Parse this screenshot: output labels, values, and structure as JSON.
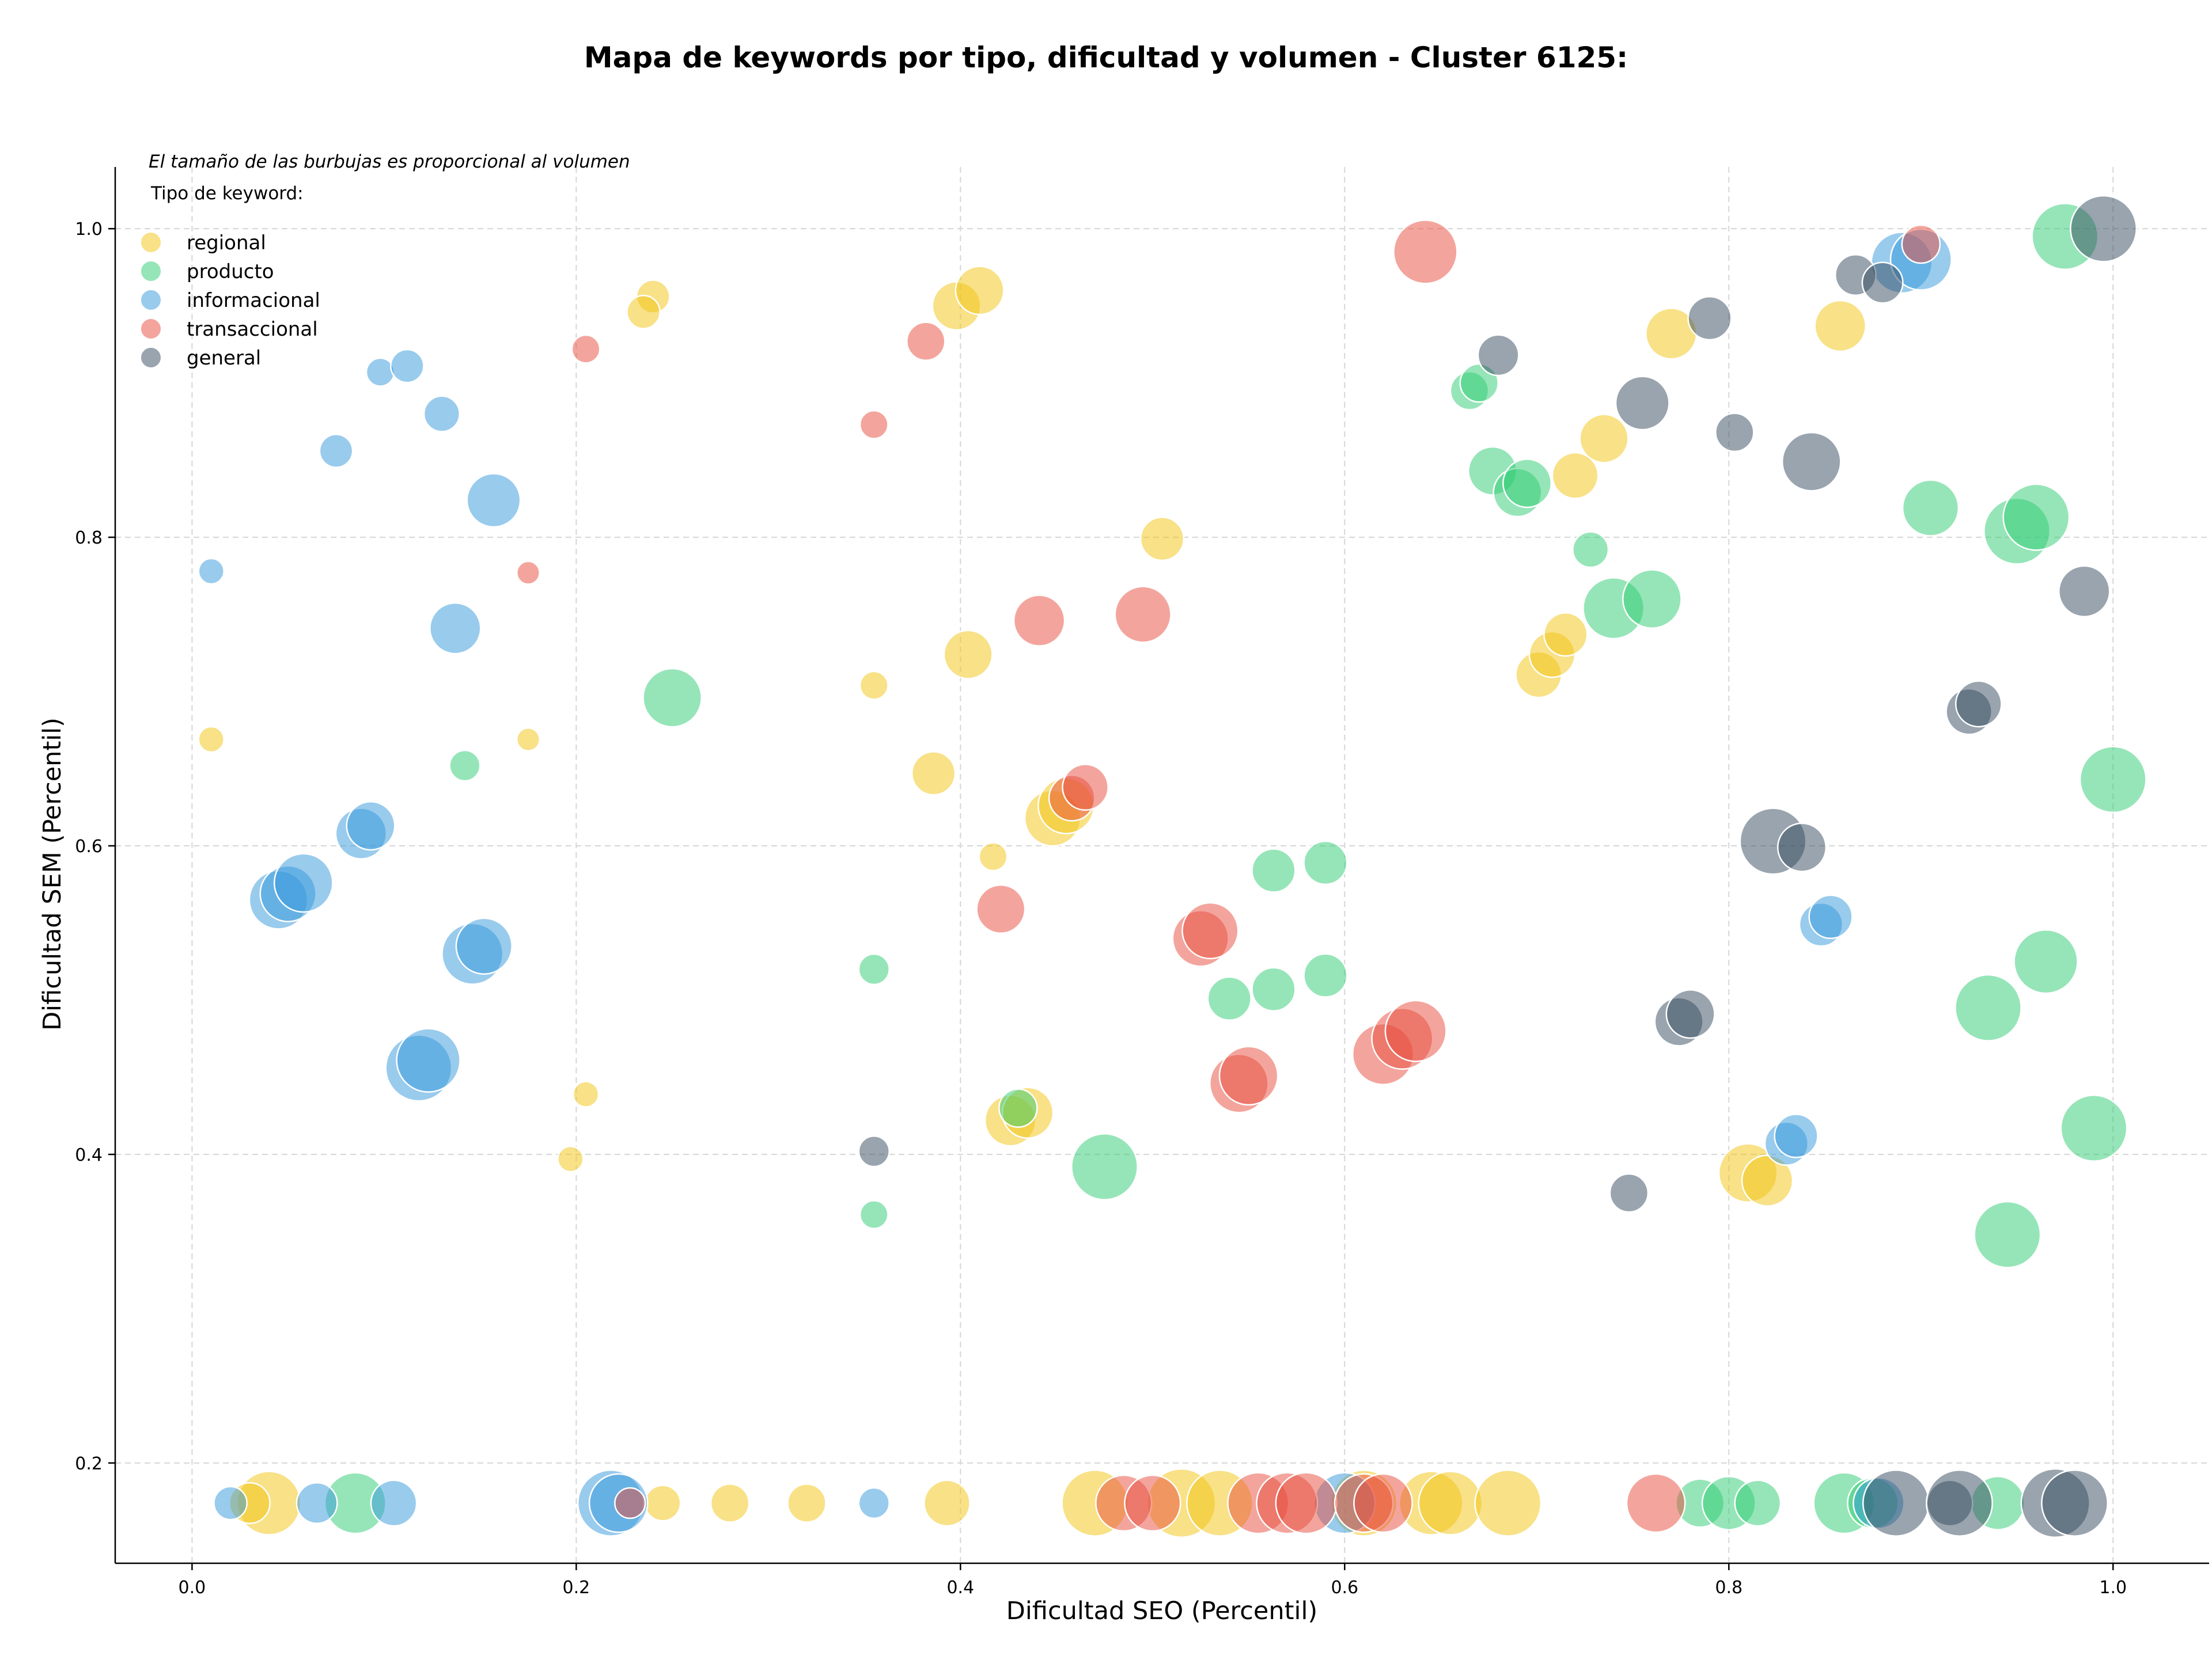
{
  "chart_data": {
    "type": "scatter",
    "title": "Mapa de keywords por tipo, dificultad y volumen - Cluster 6125:",
    "xlabel": "Dificultad SEO (Percentil)",
    "ylabel": "Dificultad SEM (Percentil)",
    "xlim": [
      -0.04,
      1.05
    ],
    "ylim": [
      0.135,
      1.04
    ],
    "x_ticks": [
      0.0,
      0.2,
      0.4,
      0.6,
      0.8,
      1.0
    ],
    "y_ticks": [
      0.2,
      0.4,
      0.6,
      0.8,
      1.0
    ],
    "x_tick_labels": [
      "0.0",
      "0.2",
      "0.4",
      "0.6",
      "0.8",
      "1.0"
    ],
    "y_tick_labels": [
      "0.2",
      "0.4",
      "0.6",
      "0.8",
      "1.0"
    ],
    "grid": true,
    "annotation": "El tamaño de las burbujas es proporcional al volumen",
    "legend_title": "Tipo de keyword:",
    "legend_position": "top-left",
    "series": [
      {
        "name": "regional",
        "color": "#f1c40f",
        "points": [
          {
            "x": 0.01,
            "y": 0.669,
            "s": 1.0
          },
          {
            "x": 0.175,
            "y": 0.669,
            "s": 0.9
          },
          {
            "x": 0.24,
            "y": 0.956,
            "s": 1.3
          },
          {
            "x": 0.235,
            "y": 0.946,
            "s": 1.3
          },
          {
            "x": 0.205,
            "y": 0.439,
            "s": 1.0
          },
          {
            "x": 0.197,
            "y": 0.397,
            "s": 1.0
          },
          {
            "x": 0.04,
            "y": 0.174,
            "s": 2.5
          },
          {
            "x": 0.03,
            "y": 0.174,
            "s": 1.6
          },
          {
            "x": 0.245,
            "y": 0.174,
            "s": 1.4
          },
          {
            "x": 0.28,
            "y": 0.174,
            "s": 1.5
          },
          {
            "x": 0.32,
            "y": 0.174,
            "s": 1.5
          },
          {
            "x": 0.393,
            "y": 0.174,
            "s": 1.8
          },
          {
            "x": 0.355,
            "y": 0.704,
            "s": 1.1
          },
          {
            "x": 0.398,
            "y": 0.95,
            "s": 1.9
          },
          {
            "x": 0.41,
            "y": 0.96,
            "s": 1.9
          },
          {
            "x": 0.404,
            "y": 0.724,
            "s": 1.9
          },
          {
            "x": 0.386,
            "y": 0.647,
            "s": 1.7
          },
          {
            "x": 0.417,
            "y": 0.593,
            "s": 1.1
          },
          {
            "x": 0.505,
            "y": 0.799,
            "s": 1.7
          },
          {
            "x": 0.426,
            "y": 0.422,
            "s": 2.0
          },
          {
            "x": 0.435,
            "y": 0.427,
            "s": 2.0
          },
          {
            "x": 0.448,
            "y": 0.618,
            "s": 2.2
          },
          {
            "x": 0.455,
            "y": 0.626,
            "s": 2.2
          },
          {
            "x": 0.47,
            "y": 0.174,
            "s": 2.6
          },
          {
            "x": 0.515,
            "y": 0.174,
            "s": 2.7
          },
          {
            "x": 0.535,
            "y": 0.174,
            "s": 2.6
          },
          {
            "x": 0.61,
            "y": 0.174,
            "s": 2.6
          },
          {
            "x": 0.645,
            "y": 0.174,
            "s": 2.5
          },
          {
            "x": 0.655,
            "y": 0.174,
            "s": 2.5
          },
          {
            "x": 0.685,
            "y": 0.174,
            "s": 2.6
          },
          {
            "x": 0.701,
            "y": 0.711,
            "s": 1.8
          },
          {
            "x": 0.708,
            "y": 0.724,
            "s": 1.8
          },
          {
            "x": 0.715,
            "y": 0.737,
            "s": 1.7
          },
          {
            "x": 0.72,
            "y": 0.84,
            "s": 1.8
          },
          {
            "x": 0.735,
            "y": 0.864,
            "s": 1.9
          },
          {
            "x": 0.77,
            "y": 0.932,
            "s": 2.0
          },
          {
            "x": 0.858,
            "y": 0.937,
            "s": 2.0
          },
          {
            "x": 0.81,
            "y": 0.388,
            "s": 2.3
          },
          {
            "x": 0.82,
            "y": 0.383,
            "s": 2.0
          }
        ]
      },
      {
        "name": "producto",
        "color": "#2ecc71",
        "points": [
          {
            "x": 0.142,
            "y": 0.652,
            "s": 1.2
          },
          {
            "x": 0.25,
            "y": 0.696,
            "s": 2.3
          },
          {
            "x": 0.085,
            "y": 0.174,
            "s": 2.4
          },
          {
            "x": 0.355,
            "y": 0.52,
            "s": 1.2
          },
          {
            "x": 0.355,
            "y": 0.361,
            "s": 1.1
          },
          {
            "x": 0.43,
            "y": 0.43,
            "s": 1.5
          },
          {
            "x": 0.475,
            "y": 0.392,
            "s": 2.6
          },
          {
            "x": 0.54,
            "y": 0.501,
            "s": 1.7
          },
          {
            "x": 0.563,
            "y": 0.584,
            "s": 1.7
          },
          {
            "x": 0.563,
            "y": 0.507,
            "s": 1.7
          },
          {
            "x": 0.59,
            "y": 0.589,
            "s": 1.7
          },
          {
            "x": 0.59,
            "y": 0.516,
            "s": 1.7
          },
          {
            "x": 0.665,
            "y": 0.895,
            "s": 1.5
          },
          {
            "x": 0.67,
            "y": 0.9,
            "s": 1.5
          },
          {
            "x": 0.677,
            "y": 0.843,
            "s": 1.9
          },
          {
            "x": 0.69,
            "y": 0.829,
            "s": 1.9
          },
          {
            "x": 0.695,
            "y": 0.835,
            "s": 1.9
          },
          {
            "x": 0.728,
            "y": 0.792,
            "s": 1.4
          },
          {
            "x": 0.74,
            "y": 0.754,
            "s": 2.4
          },
          {
            "x": 0.76,
            "y": 0.76,
            "s": 2.3
          },
          {
            "x": 0.785,
            "y": 0.174,
            "s": 1.9
          },
          {
            "x": 0.8,
            "y": 0.174,
            "s": 2.1
          },
          {
            "x": 0.815,
            "y": 0.174,
            "s": 1.8
          },
          {
            "x": 0.86,
            "y": 0.174,
            "s": 2.4
          },
          {
            "x": 0.875,
            "y": 0.174,
            "s": 2.0
          },
          {
            "x": 0.905,
            "y": 0.819,
            "s": 2.2
          },
          {
            "x": 0.94,
            "y": 0.174,
            "s": 2.1
          },
          {
            "x": 0.935,
            "y": 0.495,
            "s": 2.6
          },
          {
            "x": 0.965,
            "y": 0.525,
            "s": 2.5
          },
          {
            "x": 0.95,
            "y": 0.804,
            "s": 2.6
          },
          {
            "x": 0.96,
            "y": 0.813,
            "s": 2.6
          },
          {
            "x": 0.945,
            "y": 0.348,
            "s": 2.6
          },
          {
            "x": 0.975,
            "y": 0.995,
            "s": 2.6
          },
          {
            "x": 0.99,
            "y": 0.417,
            "s": 2.6
          },
          {
            "x": 1.0,
            "y": 0.643,
            "s": 2.6
          }
        ]
      },
      {
        "name": "informacional",
        "color": "#3498db",
        "points": [
          {
            "x": 0.01,
            "y": 0.778,
            "s": 1.0
          },
          {
            "x": 0.098,
            "y": 0.907,
            "s": 1.1
          },
          {
            "x": 0.112,
            "y": 0.911,
            "s": 1.3
          },
          {
            "x": 0.13,
            "y": 0.88,
            "s": 1.4
          },
          {
            "x": 0.075,
            "y": 0.856,
            "s": 1.3
          },
          {
            "x": 0.157,
            "y": 0.824,
            "s": 2.1
          },
          {
            "x": 0.137,
            "y": 0.741,
            "s": 2.0
          },
          {
            "x": 0.088,
            "y": 0.608,
            "s": 2.0
          },
          {
            "x": 0.093,
            "y": 0.613,
            "s": 1.9
          },
          {
            "x": 0.045,
            "y": 0.565,
            "s": 2.3
          },
          {
            "x": 0.05,
            "y": 0.569,
            "s": 2.2
          },
          {
            "x": 0.058,
            "y": 0.576,
            "s": 2.3
          },
          {
            "x": 0.146,
            "y": 0.53,
            "s": 2.4
          },
          {
            "x": 0.152,
            "y": 0.535,
            "s": 2.2
          },
          {
            "x": 0.118,
            "y": 0.456,
            "s": 2.6
          },
          {
            "x": 0.123,
            "y": 0.461,
            "s": 2.5
          },
          {
            "x": 0.02,
            "y": 0.174,
            "s": 1.3
          },
          {
            "x": 0.065,
            "y": 0.174,
            "s": 1.6
          },
          {
            "x": 0.105,
            "y": 0.174,
            "s": 1.8
          },
          {
            "x": 0.218,
            "y": 0.174,
            "s": 2.6
          },
          {
            "x": 0.222,
            "y": 0.174,
            "s": 2.3
          },
          {
            "x": 0.355,
            "y": 0.174,
            "s": 1.2
          },
          {
            "x": 0.6,
            "y": 0.174,
            "s": 2.4
          },
          {
            "x": 0.848,
            "y": 0.549,
            "s": 1.7
          },
          {
            "x": 0.853,
            "y": 0.554,
            "s": 1.7
          },
          {
            "x": 0.83,
            "y": 0.407,
            "s": 1.7
          },
          {
            "x": 0.835,
            "y": 0.412,
            "s": 1.7
          },
          {
            "x": 0.878,
            "y": 0.174,
            "s": 2.0
          },
          {
            "x": 0.89,
            "y": 0.978,
            "s": 2.4
          },
          {
            "x": 0.9,
            "y": 0.98,
            "s": 2.4
          }
        ]
      },
      {
        "name": "transaccional",
        "color": "#e74c3c",
        "points": [
          {
            "x": 0.205,
            "y": 0.922,
            "s": 1.1
          },
          {
            "x": 0.175,
            "y": 0.777,
            "s": 0.9
          },
          {
            "x": 0.228,
            "y": 0.174,
            "s": 1.2
          },
          {
            "x": 0.355,
            "y": 0.873,
            "s": 1.1
          },
          {
            "x": 0.382,
            "y": 0.927,
            "s": 1.5
          },
          {
            "x": 0.421,
            "y": 0.559,
            "s": 1.9
          },
          {
            "x": 0.441,
            "y": 0.746,
            "s": 2.0
          },
          {
            "x": 0.495,
            "y": 0.75,
            "s": 2.2
          },
          {
            "x": 0.458,
            "y": 0.631,
            "s": 1.8
          },
          {
            "x": 0.465,
            "y": 0.638,
            "s": 1.8
          },
          {
            "x": 0.485,
            "y": 0.174,
            "s": 2.2
          },
          {
            "x": 0.5,
            "y": 0.174,
            "s": 2.2
          },
          {
            "x": 0.525,
            "y": 0.54,
            "s": 2.2
          },
          {
            "x": 0.53,
            "y": 0.545,
            "s": 2.2
          },
          {
            "x": 0.545,
            "y": 0.446,
            "s": 2.3
          },
          {
            "x": 0.55,
            "y": 0.451,
            "s": 2.3
          },
          {
            "x": 0.555,
            "y": 0.174,
            "s": 2.4
          },
          {
            "x": 0.57,
            "y": 0.174,
            "s": 2.4
          },
          {
            "x": 0.58,
            "y": 0.174,
            "s": 2.4
          },
          {
            "x": 0.61,
            "y": 0.174,
            "s": 2.3
          },
          {
            "x": 0.62,
            "y": 0.174,
            "s": 2.3
          },
          {
            "x": 0.62,
            "y": 0.465,
            "s": 2.4
          },
          {
            "x": 0.63,
            "y": 0.475,
            "s": 2.4
          },
          {
            "x": 0.637,
            "y": 0.48,
            "s": 2.4
          },
          {
            "x": 0.642,
            "y": 0.985,
            "s": 2.5
          },
          {
            "x": 0.762,
            "y": 0.174,
            "s": 2.3
          },
          {
            "x": 0.9,
            "y": 0.99,
            "s": 1.5
          }
        ]
      },
      {
        "name": "general",
        "color": "#34495e",
        "points": [
          {
            "x": 0.355,
            "y": 0.402,
            "s": 1.2
          },
          {
            "x": 0.68,
            "y": 0.918,
            "s": 1.6
          },
          {
            "x": 0.755,
            "y": 0.887,
            "s": 2.1
          },
          {
            "x": 0.79,
            "y": 0.942,
            "s": 1.7
          },
          {
            "x": 0.803,
            "y": 0.868,
            "s": 1.5
          },
          {
            "x": 0.843,
            "y": 0.849,
            "s": 2.3
          },
          {
            "x": 0.748,
            "y": 0.375,
            "s": 1.5
          },
          {
            "x": 0.774,
            "y": 0.486,
            "s": 1.9
          },
          {
            "x": 0.78,
            "y": 0.491,
            "s": 1.9
          },
          {
            "x": 0.823,
            "y": 0.603,
            "s": 2.6
          },
          {
            "x": 0.838,
            "y": 0.599,
            "s": 1.9
          },
          {
            "x": 0.866,
            "y": 0.97,
            "s": 1.6
          },
          {
            "x": 0.88,
            "y": 0.965,
            "s": 1.6
          },
          {
            "x": 0.925,
            "y": 0.687,
            "s": 1.8
          },
          {
            "x": 0.93,
            "y": 0.692,
            "s": 1.8
          },
          {
            "x": 0.985,
            "y": 0.765,
            "s": 2.0
          },
          {
            "x": 0.995,
            "y": 1.0,
            "s": 2.6
          },
          {
            "x": 0.887,
            "y": 0.174,
            "s": 2.6
          },
          {
            "x": 0.915,
            "y": 0.174,
            "s": 1.8
          },
          {
            "x": 0.92,
            "y": 0.174,
            "s": 2.6
          },
          {
            "x": 0.97,
            "y": 0.174,
            "s": 2.7
          },
          {
            "x": 0.98,
            "y": 0.174,
            "s": 2.6
          }
        ]
      }
    ]
  }
}
